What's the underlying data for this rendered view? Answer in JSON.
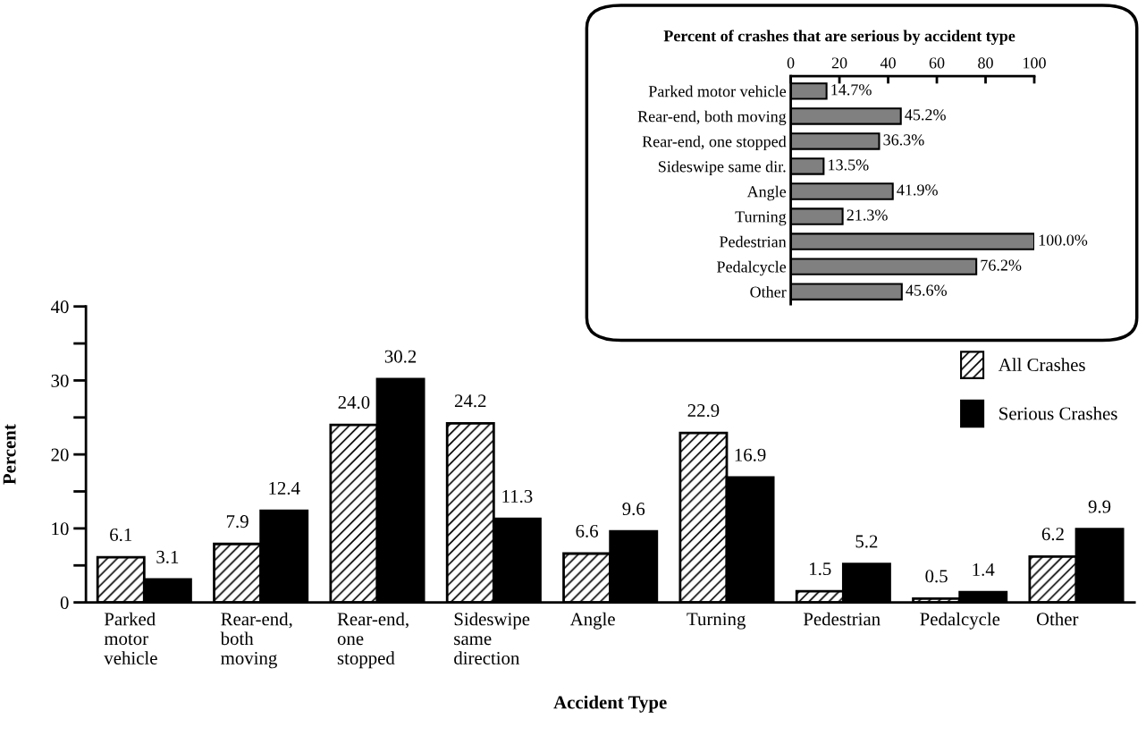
{
  "chart_data": [
    {
      "type": "bar",
      "xlabel": "Accident Type",
      "ylabel": "Percent",
      "categories": [
        "Parked\nmotor\nvehicle",
        "Rear-end,\nboth\nmoving",
        "Rear-end,\none\nstopped",
        "Sideswipe\nsame\ndirection",
        "Angle",
        "Turning",
        "Pedestrian",
        "Pedalcycle",
        "Other"
      ],
      "series": [
        {
          "name": "All Crashes",
          "color": "#000000",
          "values": [
            6.1,
            7.9,
            24.0,
            24.2,
            6.6,
            22.9,
            1.5,
            0.5,
            6.2
          ],
          "value_labels": [
            "6.1",
            "7.9",
            "24.0",
            "24.2",
            "6.6",
            "22.9",
            "1.5",
            "0.5",
            "6.2"
          ]
        },
        {
          "name": "Serious Crashes",
          "color": "#000000",
          "values": [
            3.1,
            12.4,
            30.2,
            11.3,
            9.6,
            16.9,
            5.2,
            1.4,
            9.9
          ],
          "value_labels": [
            "3.1",
            "12.4",
            "30.2",
            "11.3",
            "9.6",
            "16.9",
            "5.2",
            "1.4",
            "9.9"
          ]
        }
      ],
      "ylim": [
        0,
        40
      ],
      "yticks": [
        0,
        {
          "value": 5,
          "label": null
        },
        10,
        {
          "value": 15,
          "label": null
        },
        20,
        {
          "value": 25,
          "label": null
        },
        30,
        {
          "value": 35,
          "label": null
        },
        40
      ],
      "legend": "right",
      "grid": false
    },
    {
      "type": "bar",
      "orientation": "horizontal",
      "title": "Percent of crashes that are serious by accident type",
      "categories": [
        "Parked motor vehicle",
        "Rear-end, both moving",
        "Rear-end, one stopped",
        "Sideswipe same dir.",
        "Angle",
        "Turning",
        "Pedestrian",
        "Pedalcycle",
        "Other"
      ],
      "values": [
        14.7,
        45.2,
        36.3,
        13.5,
        41.9,
        21.3,
        100.0,
        76.2,
        45.6
      ],
      "color": "#808080",
      "value_labels": [
        "14.7%",
        "45.2%",
        "36.3%",
        "13.5%",
        "41.9%",
        "21.3%",
        "100.0%",
        "76.2%",
        "45.6%"
      ],
      "xlim": [
        0,
        100
      ],
      "xticks": [
        0,
        20,
        40,
        60,
        80,
        100
      ],
      "grid": false
    }
  ]
}
